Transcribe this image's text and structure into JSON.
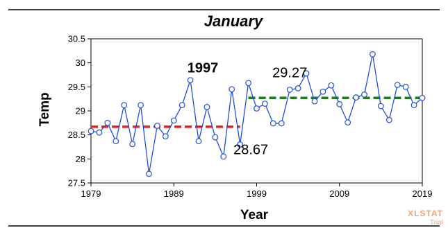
{
  "chart_data": {
    "type": "line",
    "title": "January",
    "xlabel": "Year",
    "ylabel": "Temp",
    "xlim": [
      1979,
      2019
    ],
    "ylim": [
      27.5,
      30.5
    ],
    "x_ticks": [
      "1979",
      "1989",
      "1999",
      "2009",
      "2019"
    ],
    "y_ticks": [
      "27.5",
      "28",
      "28.5",
      "29",
      "29.5",
      "30",
      "30.5"
    ],
    "grid": false,
    "series": [
      {
        "x": [
          1979,
          1980,
          1981,
          1982,
          1983,
          1984,
          1985,
          1986,
          1987,
          1988,
          1989,
          1990,
          1991,
          1992,
          1993,
          1994,
          1995,
          1996,
          1997,
          1998,
          1999,
          2000,
          2001,
          2002,
          2003,
          2004,
          2005,
          2006,
          2007,
          2008,
          2009,
          2010,
          2011,
          2012,
          2013,
          2014,
          2015,
          2016,
          2017,
          2018,
          2019
        ],
        "values": [
          28.58,
          28.55,
          28.75,
          28.37,
          29.12,
          28.31,
          29.12,
          27.69,
          28.69,
          28.47,
          28.8,
          29.12,
          29.64,
          28.37,
          29.08,
          28.45,
          28.05,
          29.45,
          28.3,
          29.58,
          29.05,
          29.15,
          28.74,
          28.74,
          29.44,
          29.47,
          29.78,
          29.2,
          29.4,
          29.53,
          29.14,
          28.76,
          29.28,
          29.34,
          30.18,
          29.1,
          28.81,
          29.54,
          29.5,
          29.12,
          29.27
        ],
        "color": "#1f4fd6"
      }
    ],
    "mean_lines": [
      {
        "x_start": 1979,
        "x_end": 1997,
        "value": 28.67,
        "color": "#e8231e"
      },
      {
        "x_start": 1998,
        "x_end": 2019,
        "value": 29.27,
        "color": "#1f7a1f"
      }
    ],
    "annotations": [
      {
        "text": "1997",
        "x": 1992.5,
        "y": 29.8,
        "weight": "bold"
      },
      {
        "text": "29.27",
        "x": 2003,
        "y": 29.7,
        "weight": "normal"
      },
      {
        "text": "28.67",
        "x": 1998.3,
        "y": 28.1,
        "weight": "normal"
      }
    ],
    "watermark": {
      "main": "XLSTAT",
      "sub": "Trial"
    }
  }
}
